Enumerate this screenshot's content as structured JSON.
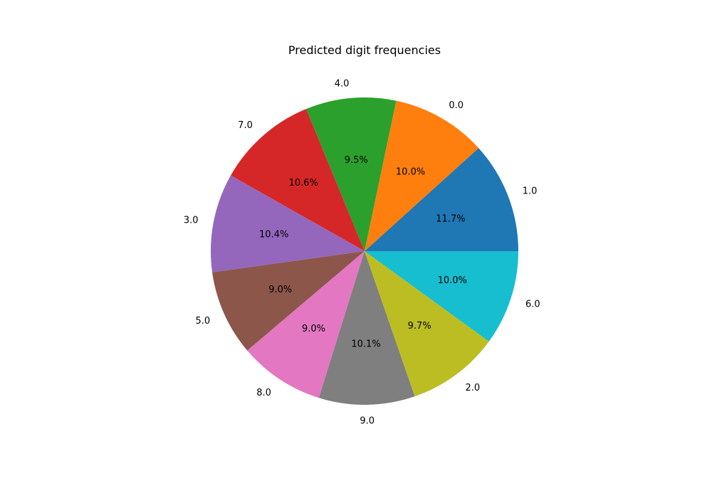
{
  "chart_data": {
    "type": "pie",
    "title": "Predicted digit frequencies",
    "start_angle_deg": 0,
    "direction": "counterclockwise",
    "slices": [
      {
        "label": "1.0",
        "pct": 11.7,
        "pct_text": "11.7%",
        "color": "#1f77b4"
      },
      {
        "label": "0.0",
        "pct": 10.0,
        "pct_text": "10.0%",
        "color": "#ff7f0e"
      },
      {
        "label": "4.0",
        "pct": 9.5,
        "pct_text": "9.5%",
        "color": "#2ca02c"
      },
      {
        "label": "7.0",
        "pct": 10.6,
        "pct_text": "10.6%",
        "color": "#d62728"
      },
      {
        "label": "3.0",
        "pct": 10.4,
        "pct_text": "10.4%",
        "color": "#9467bd"
      },
      {
        "label": "5.0",
        "pct": 9.0,
        "pct_text": "9.0%",
        "color": "#8c564b"
      },
      {
        "label": "8.0",
        "pct": 9.0,
        "pct_text": "9.0%",
        "color": "#e377c2"
      },
      {
        "label": "9.0",
        "pct": 10.1,
        "pct_text": "10.1%",
        "color": "#7f7f7f"
      },
      {
        "label": "2.0",
        "pct": 9.7,
        "pct_text": "9.7%",
        "color": "#bcbd22"
      },
      {
        "label": "6.0",
        "pct": 10.0,
        "pct_text": "10.0%",
        "color": "#17becf"
      }
    ]
  }
}
